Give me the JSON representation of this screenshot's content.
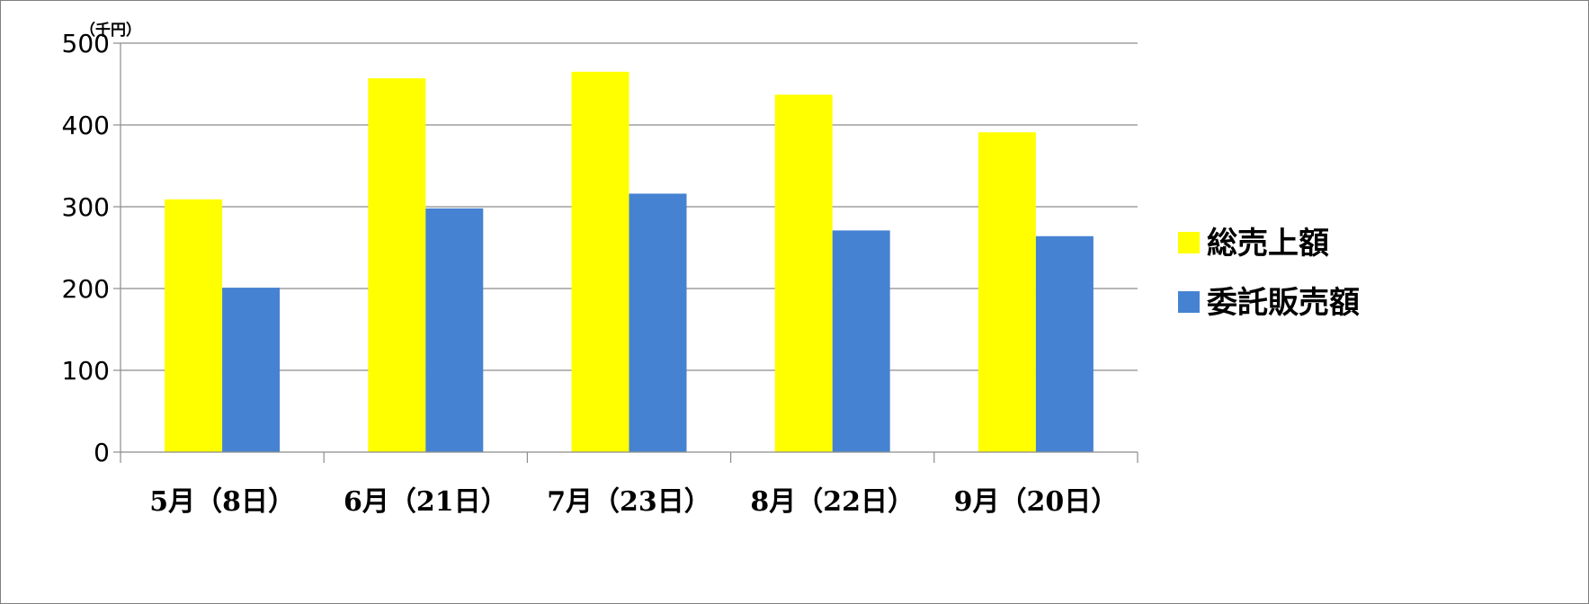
{
  "chart_data": {
    "type": "bar",
    "unit_label": "（千円）",
    "categories": [
      "5月（8日）",
      "6月（21日）",
      "7月（23日）",
      "8月（22日）",
      "9月（20日）"
    ],
    "series": [
      {
        "name": "総売上額",
        "color": "#ffff00",
        "values": [
          309,
          457,
          465,
          437,
          391
        ]
      },
      {
        "name": "委託販売額",
        "color": "#4682d2",
        "values": [
          201,
          298,
          316,
          271,
          264
        ]
      }
    ],
    "ylim": [
      0,
      500
    ],
    "yticks": [
      0,
      100,
      200,
      300,
      400,
      500
    ],
    "grid": true,
    "legend_position": "right"
  }
}
